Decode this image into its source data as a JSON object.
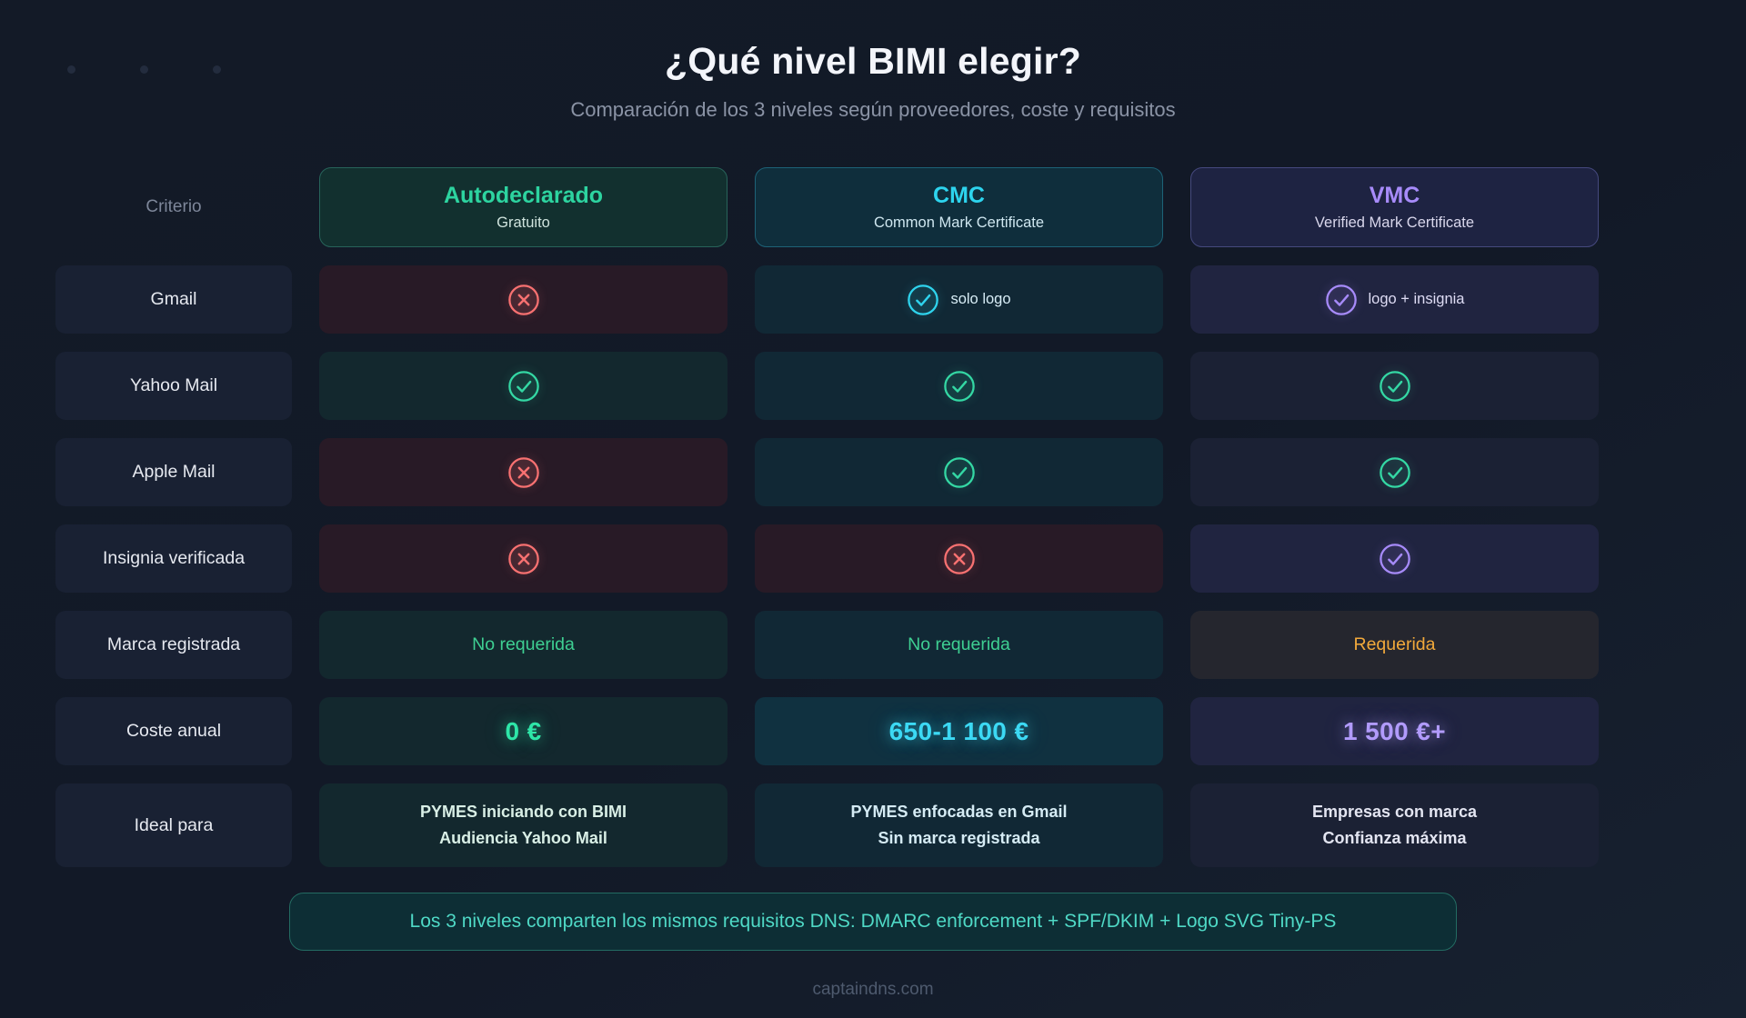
{
  "page": {
    "title": "¿Qué nivel BIMI elegir?",
    "subtitle": "Comparación de los 3 niveles según proveedores, coste y requisitos",
    "banner": "Los 3 niveles comparten los mismos requisitos DNS: DMARC enforcement + SPF/DKIM + Logo SVG Tiny-PS",
    "footer": "captaindns.com"
  },
  "theme": {
    "background": "#131a27",
    "icon_colors": {
      "green": "#34d8a4",
      "cyan": "#2fd4ee",
      "purple": "#a78bfa",
      "red": "#f87171"
    },
    "tints": {
      "green": "#13282e",
      "cyan": "#112835",
      "slate": "#1b2134",
      "red": "#281a26",
      "warm": "#25262e",
      "brightcyan": "#103140",
      "purpleCell": "#202440"
    },
    "price_colors": {
      "green": "#2ee6a8",
      "cyan": "#3cd9f4",
      "purple": "#b19bfb"
    }
  },
  "table": {
    "criteria_header": "Criterio",
    "columns": [
      {
        "id": "autodeclarado",
        "title": "Autodeclarado",
        "subtitle": "Gratuito",
        "accent": "#2dd4a0",
        "header_bg": "#12302f",
        "header_border": "#27635a",
        "subtitle_color": "#cfe3dd"
      },
      {
        "id": "cmc",
        "title": "CMC",
        "subtitle": "Common Mark Certificate",
        "accent": "#2dd4ee",
        "header_bg": "#0f2e3c",
        "header_border": "#1d6277",
        "subtitle_color": "#cfe7f0"
      },
      {
        "id": "vmc",
        "title": "VMC",
        "subtitle": "Verified Mark Certificate",
        "accent": "#a78bfa",
        "header_bg": "#1e2342",
        "header_border": "#45497e",
        "subtitle_color": "#d9d7ec"
      }
    ],
    "rows": [
      {
        "label": "Gmail",
        "cells": [
          {
            "tint": "red",
            "icon": "cross",
            "icon_color": "red"
          },
          {
            "tint": "cyan",
            "icon": "check",
            "icon_color": "cyan",
            "text": "solo logo",
            "text_color": "#d8edf6"
          },
          {
            "tint": "purpleCell",
            "icon": "check",
            "icon_color": "purple",
            "text": "logo + insignia",
            "text_color": "#dedcf4"
          }
        ]
      },
      {
        "label": "Yahoo Mail",
        "cells": [
          {
            "tint": "green",
            "icon": "check",
            "icon_color": "green"
          },
          {
            "tint": "cyan",
            "icon": "check",
            "icon_color": "green"
          },
          {
            "tint": "slate",
            "icon": "check",
            "icon_color": "green"
          }
        ]
      },
      {
        "label": "Apple Mail",
        "cells": [
          {
            "tint": "red",
            "icon": "cross",
            "icon_color": "red"
          },
          {
            "tint": "cyan",
            "icon": "check",
            "icon_color": "green"
          },
          {
            "tint": "slate",
            "icon": "check",
            "icon_color": "green"
          }
        ]
      },
      {
        "label": "Insignia verificada",
        "cells": [
          {
            "tint": "red",
            "icon": "cross",
            "icon_color": "red"
          },
          {
            "tint": "red",
            "icon": "cross",
            "icon_color": "red"
          },
          {
            "tint": "purpleCell",
            "icon": "check",
            "icon_color": "purple"
          }
        ]
      },
      {
        "label": "Marca registrada",
        "cells": [
          {
            "tint": "green",
            "text": "No requerida",
            "text_color": "#3ecf92"
          },
          {
            "tint": "cyan",
            "text": "No requerida",
            "text_color": "#3ecf92"
          },
          {
            "tint": "warm",
            "text": "Requerida",
            "text_color": "#f2a93b"
          }
        ]
      },
      {
        "label": "Coste anual",
        "cells": [
          {
            "tint": "green",
            "price": "0 €",
            "price_color": "green"
          },
          {
            "tint": "brightcyan",
            "price": "650-1 100 €",
            "price_color": "cyan"
          },
          {
            "tint": "purpleCell",
            "price": "1 500 €+",
            "price_color": "purple"
          }
        ]
      },
      {
        "label": "Ideal para",
        "cells": [
          {
            "tint": "green",
            "lines": [
              "PYMES iniciando con BIMI",
              "Audiencia Yahoo Mail"
            ],
            "text_color": "#d9efe6"
          },
          {
            "tint": "cyan",
            "lines": [
              "PYMES enfocadas en Gmail",
              "Sin marca registrada"
            ],
            "text_color": "#d5ebf4"
          },
          {
            "tint": "slate",
            "lines": [
              "Empresas con marca",
              "Confianza máxima"
            ],
            "text_color": "#e3e5f1"
          }
        ]
      }
    ]
  },
  "chart_data": {
    "type": "table",
    "title": "¿Qué nivel BIMI elegir?",
    "subtitle": "Comparación de los 3 niveles según proveedores, coste y requisitos",
    "columns": [
      "Criterio",
      "Autodeclarado (Gratuito)",
      "CMC (Common Mark Certificate)",
      "VMC (Verified Mark Certificate)"
    ],
    "rows": [
      [
        "Gmail",
        "no",
        "sí (solo logo)",
        "sí (logo + insignia)"
      ],
      [
        "Yahoo Mail",
        "sí",
        "sí",
        "sí"
      ],
      [
        "Apple Mail",
        "no",
        "sí",
        "sí"
      ],
      [
        "Insignia verificada",
        "no",
        "no",
        "sí"
      ],
      [
        "Marca registrada",
        "No requerida",
        "No requerida",
        "Requerida"
      ],
      [
        "Coste anual",
        "0 €",
        "650-1 100 €",
        "1 500 €+"
      ],
      [
        "Ideal para",
        "PYMES iniciando con BIMI / Audiencia Yahoo Mail",
        "PYMES enfocadas en Gmail / Sin marca registrada",
        "Empresas con marca / Confianza máxima"
      ]
    ]
  }
}
